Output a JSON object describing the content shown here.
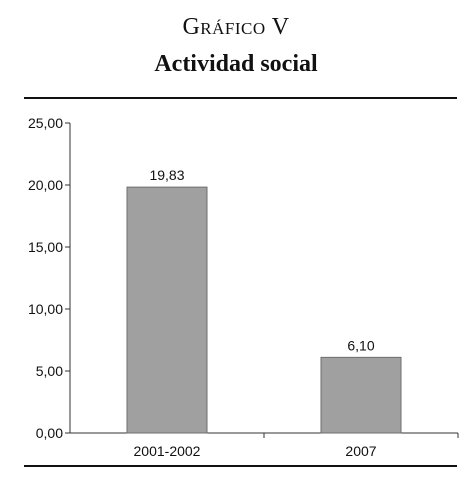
{
  "heading": "Gráfico V",
  "chart_data": {
    "type": "bar",
    "title": "Actividad social",
    "categories": [
      "2001-2002",
      "2007"
    ],
    "values": [
      19.83,
      6.1
    ],
    "value_labels": [
      "19,83",
      "6,10"
    ],
    "ylim": [
      0,
      25
    ],
    "yticks": [
      0,
      5,
      10,
      15,
      20,
      25
    ],
    "ytick_labels": [
      "0,00",
      "5,00",
      "10,00",
      "15,00",
      "20,00",
      "25,00"
    ],
    "xlabel": "",
    "ylabel": "",
    "grid": false,
    "bar_color": "#a0a0a0",
    "bar_edge_color": "#6e6e6e"
  }
}
